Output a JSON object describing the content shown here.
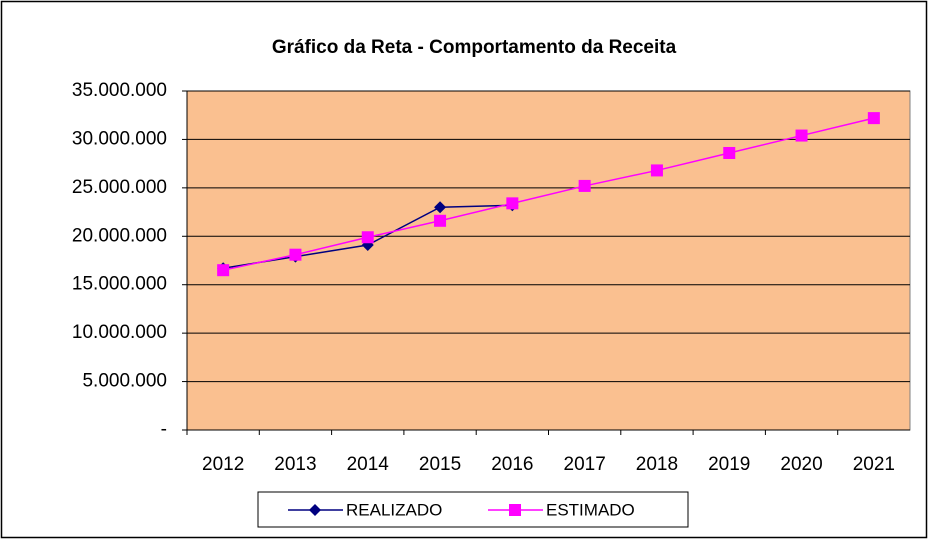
{
  "chart_data": {
    "type": "line",
    "title": "Gráfico da Reta - Comportamento da Receita",
    "categories": [
      "2012",
      "2013",
      "2014",
      "2015",
      "2016",
      "2017",
      "2018",
      "2019",
      "2020",
      "2021"
    ],
    "series": [
      {
        "name": "REALIZADO",
        "color": "#000080",
        "marker": "diamond",
        "values": [
          16700000,
          17900000,
          19100000,
          23000000,
          23200000,
          null,
          null,
          null,
          null,
          null
        ]
      },
      {
        "name": "ESTIMADO",
        "color": "#ff00ff",
        "marker": "square",
        "values": [
          16500000,
          18100000,
          19900000,
          21600000,
          23400000,
          25200000,
          26800000,
          28600000,
          30400000,
          32200000
        ]
      }
    ],
    "ylim": [
      0,
      35000000
    ],
    "yticks": [
      {
        "value": 0,
        "label": "-"
      },
      {
        "value": 5000000,
        "label": "5.000.000"
      },
      {
        "value": 10000000,
        "label": "10.000.000"
      },
      {
        "value": 15000000,
        "label": "15.000.000"
      },
      {
        "value": 20000000,
        "label": "20.000.000"
      },
      {
        "value": 25000000,
        "label": "25.000.000"
      },
      {
        "value": 30000000,
        "label": "30.000.000"
      },
      {
        "value": 35000000,
        "label": "35.000.000"
      }
    ],
    "grid": true,
    "legend": "bottom",
    "plot_background": "#fac090"
  }
}
